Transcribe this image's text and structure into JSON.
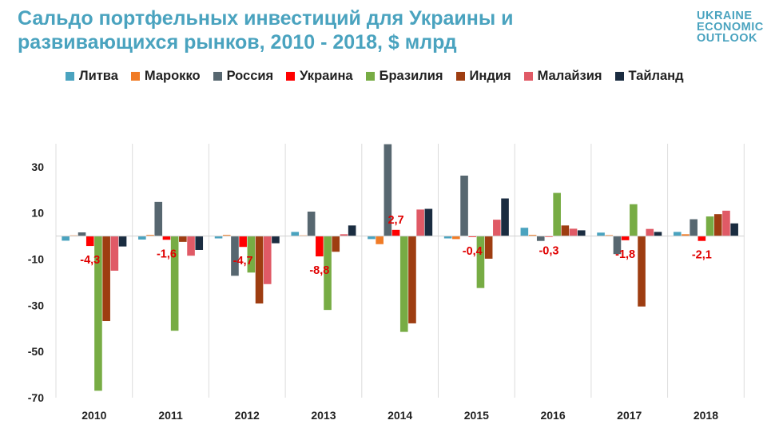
{
  "title": "Сальдо портфельных инвестиций для Украины и развивающихся рынков, 2010 - 2018, $ млрд",
  "logo": [
    "UKRAINE",
    "ECONOMIC",
    "OUTLOOK"
  ],
  "colors": {
    "title": "#4aa3bf",
    "highlight_label": "#e00000"
  },
  "chart_data": {
    "type": "bar",
    "categories": [
      "2010",
      "2011",
      "2012",
      "2013",
      "2014",
      "2015",
      "2016",
      "2017",
      "2018"
    ],
    "ylim": [
      -70,
      40
    ],
    "yticks": [
      30,
      10,
      -10,
      -30,
      -50,
      -70
    ],
    "grid": "vertical",
    "legend_position": "top",
    "series": [
      {
        "name": "Литва",
        "color": "#4aa3bf",
        "values": [
          -2.0,
          -1.5,
          -1.0,
          1.8,
          -1.3,
          -1.0,
          3.6,
          1.5,
          1.8
        ]
      },
      {
        "name": "Марокко",
        "color": "#f07b26",
        "values": [
          0.3,
          0.5,
          0.5,
          0.3,
          -3.5,
          -1.3,
          0.5,
          0.4,
          0.8
        ]
      },
      {
        "name": "Россия",
        "color": "#576770",
        "values": [
          1.6,
          14.8,
          -17.2,
          10.6,
          39.8,
          26.2,
          -2.1,
          -7.8,
          7.3
        ]
      },
      {
        "name": "Украина",
        "color": "#ff0000",
        "values": [
          -4.3,
          -1.6,
          -4.7,
          -8.8,
          2.7,
          -0.4,
          -0.3,
          -1.8,
          -2.1
        ]
      },
      {
        "name": "Бразилия",
        "color": "#77ac44",
        "values": [
          -67.0,
          -41.0,
          -15.8,
          -32.0,
          -41.5,
          -22.5,
          18.7,
          13.8,
          8.5
        ]
      },
      {
        "name": "Индия",
        "color": "#9e3d11",
        "values": [
          -36.8,
          -2.5,
          -29.2,
          -6.8,
          -37.8,
          -9.8,
          4.6,
          -30.5,
          9.5
        ]
      },
      {
        "name": "Малайзия",
        "color": "#e05a66",
        "values": [
          -15.0,
          -8.5,
          -20.8,
          0.8,
          11.5,
          7.1,
          3.2,
          3.1,
          11.0
        ]
      },
      {
        "name": "Тайланд",
        "color": "#1a2c40",
        "values": [
          -4.5,
          -6.0,
          -3.1,
          4.6,
          11.8,
          16.3,
          2.5,
          1.8,
          5.5
        ]
      }
    ],
    "data_labels": {
      "series": "Украина",
      "labels": [
        "-4,3",
        "-1,6",
        "-4,7",
        "-8,8",
        "2,7",
        "-0,4",
        "-0,3",
        "-1,8",
        "-2,1"
      ]
    }
  }
}
